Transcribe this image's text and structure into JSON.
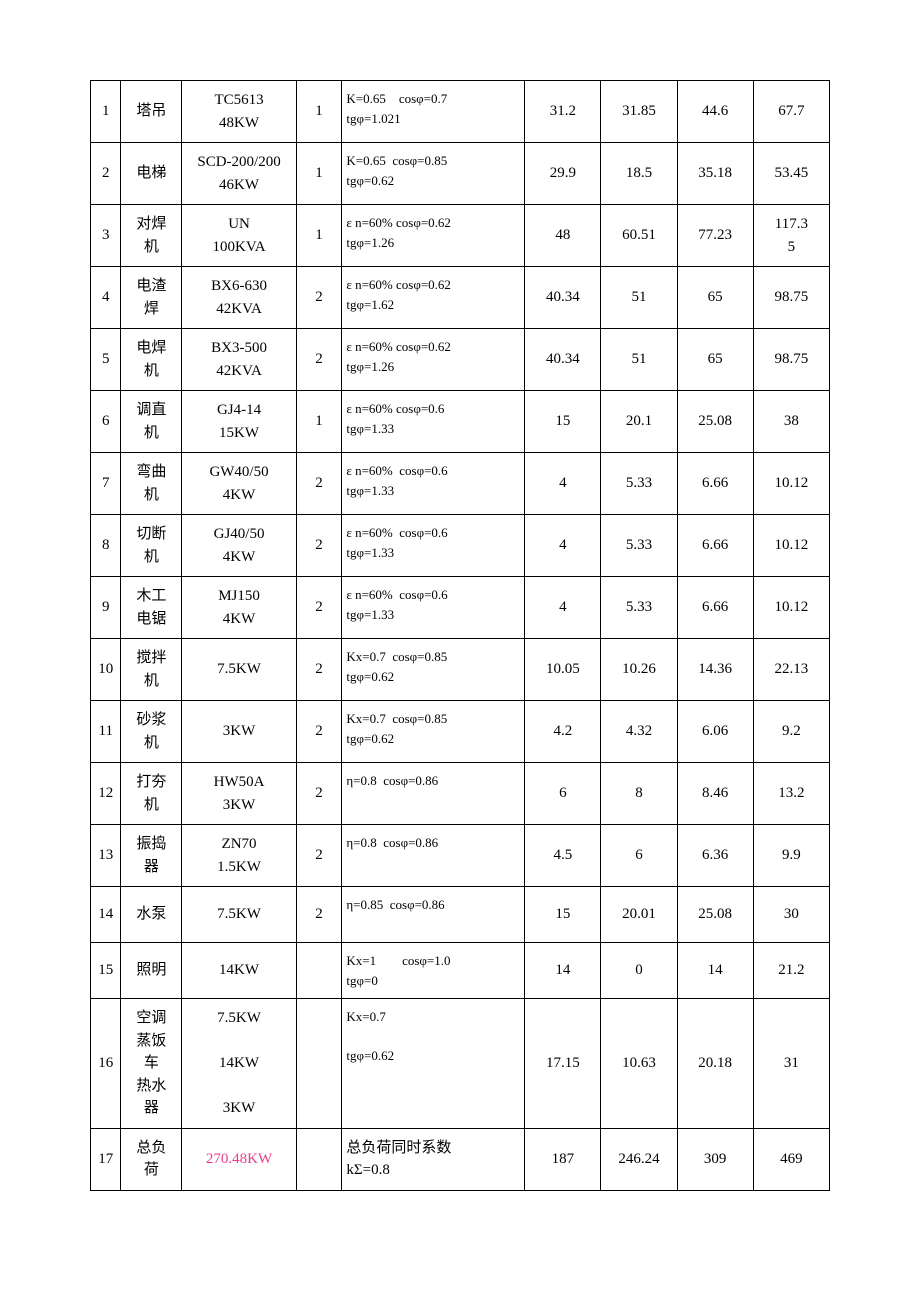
{
  "highlight_color": "#e83e8c",
  "rows": [
    {
      "num": "1",
      "name": "塔吊",
      "spec": "TC5613\n48KW",
      "qty": "1",
      "param": "K=0.65　cosφ=0.7\ntgφ=1.021",
      "v1": "31.2",
      "v2": "31.85",
      "v3": "44.6",
      "v4": "67.7"
    },
    {
      "num": "2",
      "name": "电梯",
      "spec": "SCD-200/200\n46KW",
      "qty": "1",
      "param": "K=0.65  cosφ=0.85\ntgφ=0.62",
      "v1": "29.9",
      "v2": "18.5",
      "v3": "35.18",
      "v4": "53.45"
    },
    {
      "num": "3",
      "name": "对焊\n机",
      "spec": "UN\n100KVA",
      "qty": "1",
      "param": "ε n=60% cosφ=0.62\ntgφ=1.26",
      "v1": "48",
      "v2": "60.51",
      "v3": "77.23",
      "v4": "117.3\n5"
    },
    {
      "num": "4",
      "name": "电渣\n焊",
      "spec": "BX6-630\n42KVA",
      "qty": "2",
      "param": "ε n=60% cosφ=0.62\ntgφ=1.62",
      "v1": "40.34",
      "v2": "51",
      "v3": "65",
      "v4": "98.75"
    },
    {
      "num": "5",
      "name": "电焊\n机",
      "spec": "BX3-500\n42KVA",
      "qty": "2",
      "param": "ε n=60% cosφ=0.62\ntgφ=1.26",
      "v1": "40.34",
      "v2": "51",
      "v3": "65",
      "v4": "98.75"
    },
    {
      "num": "6",
      "name": "调直\n机",
      "spec": "GJ4-14\n15KW",
      "qty": "1",
      "param": "ε n=60% cosφ=0.6\ntgφ=1.33",
      "v1": "15",
      "v2": "20.1",
      "v3": "25.08",
      "v4": "38"
    },
    {
      "num": "7",
      "name": "弯曲\n机",
      "spec": "GW40/50\n4KW",
      "qty": "2",
      "param": "ε n=60%  cosφ=0.6\ntgφ=1.33",
      "v1": "4",
      "v2": "5.33",
      "v3": "6.66",
      "v4": "10.12"
    },
    {
      "num": "8",
      "name": "切断\n机",
      "spec": "GJ40/50\n4KW",
      "qty": "2",
      "param": "ε n=60%  cosφ=0.6\ntgφ=1.33",
      "v1": "4",
      "v2": "5.33",
      "v3": "6.66",
      "v4": "10.12"
    },
    {
      "num": "9",
      "name": "木工\n电锯",
      "spec": "MJ150\n4KW",
      "qty": "2",
      "param": "ε n=60%  cosφ=0.6\ntgφ=1.33",
      "v1": "4",
      "v2": "5.33",
      "v3": "6.66",
      "v4": "10.12"
    },
    {
      "num": "10",
      "name": "搅拌\n机",
      "spec": "7.5KW",
      "qty": "2",
      "param": "Kx=0.7  cosφ=0.85\ntgφ=0.62",
      "v1": "10.05",
      "v2": "10.26",
      "v3": "14.36",
      "v4": "22.13"
    },
    {
      "num": "11",
      "name": "砂浆\n机",
      "spec": "3KW",
      "qty": "2",
      "param": "Kx=0.7  cosφ=0.85\ntgφ=0.62",
      "v1": "4.2",
      "v2": "4.32",
      "v3": "6.06",
      "v4": "9.2"
    },
    {
      "num": "12",
      "name": "打夯\n机",
      "spec": "HW50A\n3KW",
      "qty": "2",
      "param": "η=0.8  cosφ=0.86\n ",
      "v1": "6",
      "v2": "8",
      "v3": "8.46",
      "v4": "13.2"
    },
    {
      "num": "13",
      "name": "振捣\n器",
      "spec": "ZN70\n1.5KW",
      "qty": "2",
      "param": "η=0.8  cosφ=0.86\n ",
      "v1": "4.5",
      "v2": "6",
      "v3": "6.36",
      "v4": "9.9"
    },
    {
      "num": "14",
      "name": "水泵",
      "spec": "7.5KW",
      "qty": "2",
      "param": "η=0.85  cosφ=0.86\n ",
      "v1": "15",
      "v2": "20.01",
      "v3": "25.08",
      "v4": "30"
    },
    {
      "num": "15",
      "name": "照明",
      "spec": "14KW",
      "qty": "",
      "param": "Kx=1　　cosφ=1.0\ntgφ=0",
      "v1": "14",
      "v2": "0",
      "v3": "14",
      "v4": "21.2"
    },
    {
      "num": "16",
      "name": "空调\n蒸饭\n车\n热水\n器",
      "spec": "7.5KW\n\n14KW\n\n3KW",
      "qty": "",
      "param": "Kx=0.7\n\ntgφ=0.62",
      "v1": "17.15",
      "v2": "10.63",
      "v3": "20.18",
      "v4": "31"
    },
    {
      "num": "17",
      "name": "总负\n荷",
      "spec": "270.48KW",
      "spec_highlight": true,
      "qty": "",
      "param": "总负荷同时系数\nkΣ=0.8",
      "param_large": true,
      "v1": "187",
      "v2": "246.24",
      "v3": "309",
      "v4": "469"
    }
  ]
}
